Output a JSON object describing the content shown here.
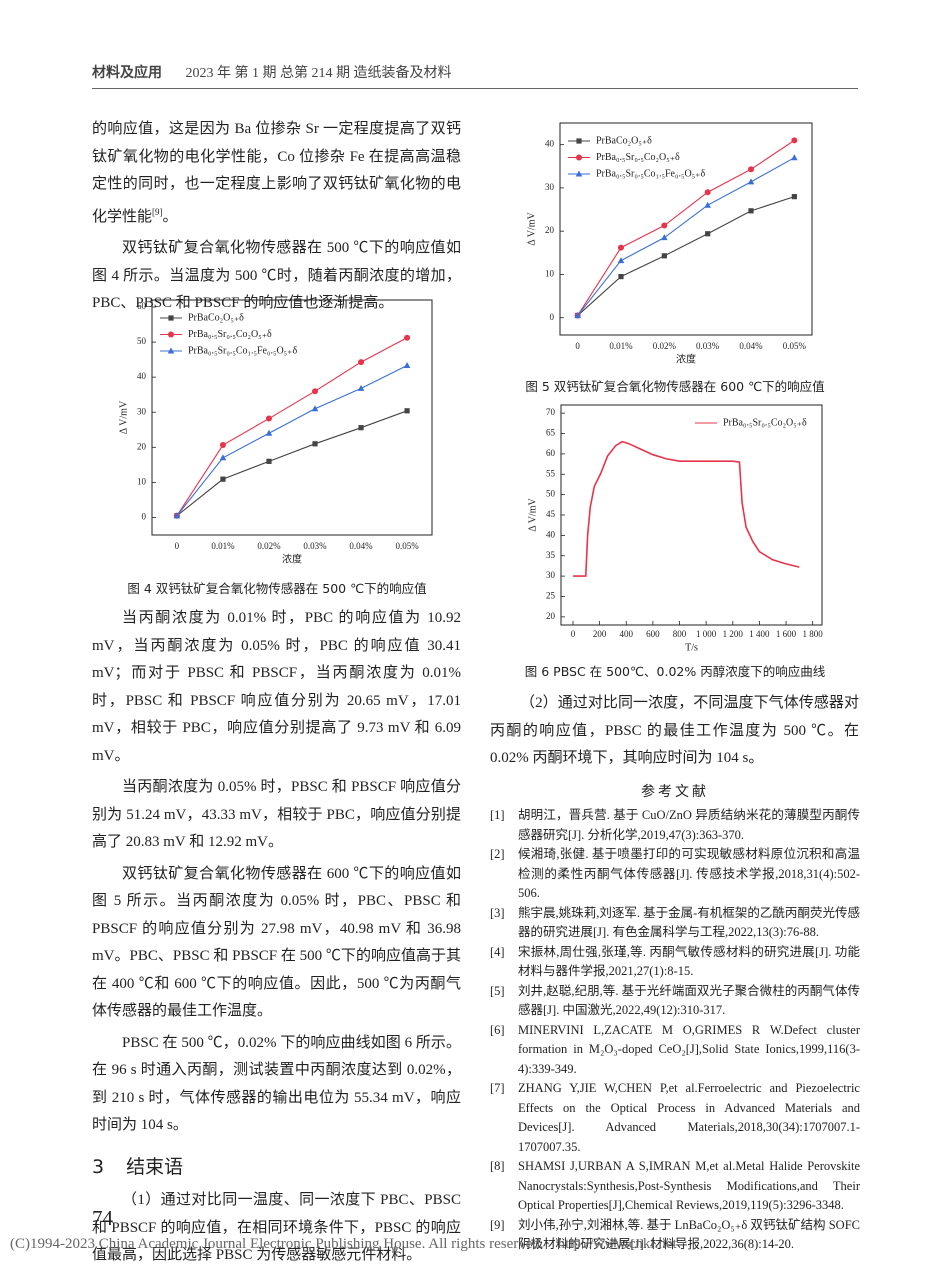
{
  "header": {
    "journal": "材料及应用",
    "issue": "2023 年 第 1 期 总第 214 期 造纸装备及材料"
  },
  "left_top": {
    "p1": {
      "text": "的响应值，这是因为 Ba 位掺杂 Sr 一定程度提高了双钙钛矿氧化物的电化学性能，Co 位掺杂 Fe 在提高高温稳定性的同时，也一定程度上影响了双钙钛矿氧化物的电化学性能",
      "ref": "[9]",
      "tail": "。"
    },
    "p2": "双钙钛矿复合氧化物传感器在 500 ℃下的响应值如图 4 所示。当温度为 500 ℃时，随着丙酮浓度的增加，PBC、PBSC 和 PBSCF 的响应值也逐渐提高。"
  },
  "captions": [
    "图 4  双钙钛矿复合氧化物传感器在 500 ℃下的响应值",
    "图 5  双钙钛矿复合氧化物传感器在 600 ℃下的响应值",
    "图 6  PBSC 在 500℃、0.02% 丙醇浓度下的响应曲线"
  ],
  "left_bottom": [
    "当丙酮浓度为 0.01% 时，PBC 的响应值为 10.92 mV，当丙酮浓度为 0.05% 时，PBC 的响应值 30.41 mV；而对于 PBSC 和 PBSCF，当丙酮浓度为 0.01% 时，PBSC 和 PBSCF 响应值分别为 20.65 mV，17.01 mV，相较于 PBC，响应值分别提高了 9.73 mV 和 6.09 mV。",
    "当丙酮浓度为 0.05% 时，PBSC 和 PBSCF 响应值分别为 51.24 mV，43.33 mV，相较于 PBC，响应值分别提高了 20.83 mV 和 12.92 mV。",
    "双钙钛矿复合氧化物传感器在 600 ℃下的响应值如图 5 所示。当丙酮浓度为 0.05% 时，PBC、PBSC 和 PBSCF 的响应值分别为 27.98 mV，40.98 mV 和 36.98 mV。PBC、PBSC 和 PBSCF 在 500 ℃下的响应值高于其在 400 ℃和 600 ℃下的响应值。因此，500 ℃为丙酮气体传感器的最佳工作温度。",
    "PBSC 在 500 ℃，0.02% 下的响应曲线如图 6 所示。在 96 s 时通入丙酮，测试装置中丙酮浓度达到 0.02%，到 210 s 时，气体传感器的输出电位为 55.34 mV，响应时间为 104 s。"
  ],
  "section": {
    "number": "3",
    "title": "结束语",
    "paragraphs": [
      "（1）通过对比同一温度、同一浓度下 PBC、PBSC 和 PBSCF 的响应值，在相同环境条件下，PBSC 的响应值最高，因此选择 PBSC 为传感器敏感元件材料。",
      "（2）通过对比同一浓度，不同温度下气体传感器对丙酮的响应值，PBSC 的最佳工作温度为 500 ℃。在 0.02% 丙酮环境下，其响应时间为 104 s。"
    ]
  },
  "references": {
    "title": "参考文献",
    "items": [
      {
        "num": "[1]",
        "text": "胡明江，晋兵营. 基于 CuO/ZnO 异质结纳米花的薄膜型丙酮传感器研究[J]. 分析化学,2019,47(3):363-370."
      },
      {
        "num": "[2]",
        "text": "候湘琦,张健. 基于喷墨打印的可实现敏感材料原位沉积和高温检测的柔性丙酮气体传感器[J]. 传感技术学报,2018,31(4):502-506."
      },
      {
        "num": "[3]",
        "text": "熊宇晨,姚珠莉,刘逐军. 基于金属-有机框架的乙酰丙酮荧光传感器的研究进展[J]. 有色金属科学与工程,2022,13(3):76-88."
      },
      {
        "num": "[4]",
        "text": "宋振林,周仕强,张瑾,等. 丙酮气敏传感材料的研究进展[J]. 功能材料与器件学报,2021,27(1):8-15."
      },
      {
        "num": "[5]",
        "text": "刘井,赵聪,纪朋,等. 基于光纤端面双光子聚合微柱的丙酮气体传感器[J]. 中国激光,2022,49(12):310-317."
      },
      {
        "num": "[6]",
        "text": "MINERVINI L,ZACATE M O,GRIMES R W.Defect cluster formation in M₂O₃-doped CeO₂[J],Solid State Ionics,1999,116(3-4):339-349."
      },
      {
        "num": "[7]",
        "text": "ZHANG Y,JIE W,CHEN P,et al.Ferroelectric and Piezoelectric Effects on the Optical Process in Advanced Materials and Devices[J]. Advanced Materials,2018,30(34):1707007.1-1707007.35."
      },
      {
        "num": "[8]",
        "text": "SHAMSI J,URBAN A S,IMRAN M,et al.Metal Halide Perovskite Nanocrystals:Synthesis,Post-Synthesis Modifications,and Their Optical Properties[J],Chemical Reviews,2019,119(5):3296-3348."
      },
      {
        "num": "[9]",
        "text": "刘小伟,孙宁,刘湘林,等. 基于 LnBaCo₂O₅₊δ 双钙钛矿结构 SOFC 阴极材料的研究进展[J]. 材料导报,2022,36(8):14-20."
      }
    ]
  },
  "page_number": "74",
  "footer": {
    "copyright": "(C)1994-2023 China Academic Journal Electronic Publishing House. All rights reserved.",
    "url": "http://www.cnki.net"
  },
  "chart_data": [
    {
      "type": "line",
      "xlabel": "浓度",
      "ylabel": "Δ V/mV",
      "legend": "upper left",
      "categories": [
        "0",
        "0.01%",
        "0.02%",
        "0.03%",
        "0.04%",
        "0.05%"
      ],
      "series": [
        {
          "name": "PrBaCo₂O₅₊δ",
          "color": "#444444",
          "marker": "square",
          "values": [
            0.5,
            10.92,
            16,
            21,
            25.6,
            30.41
          ]
        },
        {
          "name": "PrBa₀.₅Sr₀.₅Co₂O₅₊δ",
          "color": "#e8344a",
          "marker": "circle",
          "values": [
            0.5,
            20.65,
            28.2,
            36,
            44.3,
            51.24
          ]
        },
        {
          "name": "PrBa₀.₅Sr₀.₅Co₁.₅Fe₀.₅O₅₊δ",
          "color": "#3a6fd6",
          "marker": "triangle",
          "values": [
            0.5,
            17.01,
            24,
            31,
            36.8,
            43.33
          ]
        }
      ],
      "ylim": [
        -5,
        62
      ],
      "yticks": [
        0,
        10,
        20,
        30,
        40,
        50,
        60
      ]
    },
    {
      "type": "line",
      "xlabel": "浓度",
      "ylabel": "Δ V/mV",
      "legend": "upper left",
      "categories": [
        "0",
        "0.01%",
        "0.02%",
        "0.03%",
        "0.04%",
        "0.05%"
      ],
      "series": [
        {
          "name": "PrBaCo₂O₅₊δ",
          "color": "#444444",
          "marker": "square",
          "values": [
            0.5,
            9.5,
            14.3,
            19.4,
            24.7,
            27.98
          ]
        },
        {
          "name": "PrBa₀.₅Sr₀.₅Co₂O₅₊δ",
          "color": "#e8344a",
          "marker": "circle",
          "values": [
            0.5,
            16.2,
            21.3,
            29,
            34.3,
            40.98
          ]
        },
        {
          "name": "PrBa₀.₅Sr₀.₅Co₁.₅Fe₀.₅O₅₊δ",
          "color": "#3a6fd6",
          "marker": "triangle",
          "values": [
            0.5,
            13.2,
            18.5,
            26,
            31.4,
            36.98
          ]
        }
      ],
      "ylim": [
        -4,
        45
      ],
      "yticks": [
        0,
        10,
        20,
        30,
        40
      ]
    },
    {
      "type": "line",
      "xlabel": "T/s",
      "ylabel": "Δ V/mV",
      "legend": "upper right",
      "x": [
        0,
        50,
        96,
        110,
        130,
        160,
        210,
        260,
        320,
        370,
        420,
        500,
        600,
        700,
        800,
        1000,
        1200,
        1250,
        1270,
        1300,
        1350,
        1400,
        1500,
        1600,
        1700
      ],
      "series": [
        {
          "name": "PrBa₀.₅Sr₀.₅Co₂O₅₊δ",
          "color": "#e8344a",
          "values": [
            30,
            30,
            30,
            40,
            47,
            52,
            55.34,
            59.5,
            62,
            63,
            62.5,
            61.3,
            59.8,
            58.8,
            58.2,
            58.2,
            58.2,
            58,
            48,
            42,
            38.5,
            36,
            34,
            33,
            32.2
          ]
        }
      ],
      "xlim": [
        -90,
        1870
      ],
      "xticks": [
        0,
        200,
        400,
        600,
        800,
        {
          "value": 1000,
          "label": "1 000"
        },
        {
          "value": 1200,
          "label": "1 200"
        },
        {
          "value": 1400,
          "label": "1 400"
        },
        {
          "value": 1600,
          "label": "1 600"
        },
        {
          "value": 1800,
          "label": "1 800"
        }
      ],
      "ylim": [
        18,
        72
      ],
      "yticks": [
        20,
        25,
        30,
        35,
        40,
        45,
        50,
        55,
        60,
        65,
        70
      ]
    }
  ]
}
